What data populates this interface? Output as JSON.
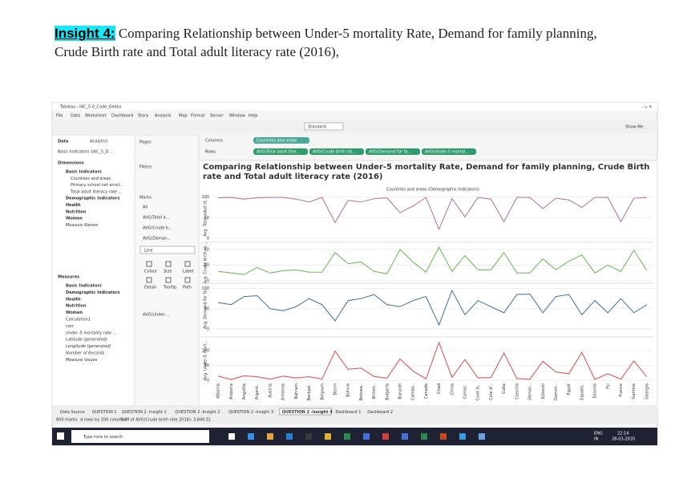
{
  "heading": {
    "label": "Insight 4:",
    "text": "Comparing Relationship between Under-5 mortality Rate, Demand for family planning, Crude Birth rate and Total adult literacy rate (2016),"
  },
  "window": {
    "title": "Tableau - IAC_5.0_Code_Geeks",
    "menu": [
      "File",
      "Data",
      "Worksheet",
      "Dashboard",
      "Story",
      "Analysis",
      "Map",
      "Format",
      "Server",
      "Window",
      "Help"
    ],
    "toolbar_dropdown": "Standard",
    "show_me": "Show Me"
  },
  "data_pane": {
    "tabs": [
      "Data",
      "Analytics"
    ],
    "source": "Basic Indicators (IAC_5_D...",
    "dimensions_header": "Dimensions",
    "dimensions": [
      "Basic Indicators",
      "Countries and areas",
      "Primary school net enrol...",
      "Total adult literacy rate ...",
      "Demographic Indicators",
      "Health",
      "Nutrition",
      "Women",
      "Measure Names"
    ],
    "measures_header": "Measures",
    "measures": [
      "Basic Indicators",
      "Demographic Indicators",
      "Health",
      "Nutrition",
      "Women",
      "Calculation1",
      "corr",
      "Under–5 mortality rate ...",
      "Latitude (generated)",
      "Longitude (generated)",
      "Number of Records",
      "Measure Values"
    ]
  },
  "cards": {
    "pages": "Pages",
    "filters": "Filters",
    "marks": "Marks",
    "marks_items": [
      "All",
      "AVG(Total a...",
      "AVG(Crude b...",
      "AVG(Deman..."
    ],
    "mark_type": "Line",
    "buttons": [
      "Colour",
      "Size",
      "Label",
      "Detail",
      "Tooltip",
      "Path"
    ],
    "last_item": "AVG(Under-..."
  },
  "shelves": {
    "columns_label": "Columns",
    "columns": [
      "Countries and areas"
    ],
    "rows_label": "Rows",
    "rows": [
      "AVG(Total adult liter...",
      "AVG(Crude birth rat...",
      "AVG(Demand for fa...",
      "AVG(Under-5 mortal..."
    ]
  },
  "chart_data": {
    "type": "line",
    "title": "Comparing Relationship between Under-5 mortality Rate, Demand for family planning, Crude Birth rate and Total adult literacy rate (2016)",
    "subtitle": "Countries and areas (Demographic Indicators)",
    "categories": [
      "Albania",
      "Andorra",
      "Anguilla",
      "Argent..",
      "Austria",
      "Armenia",
      "Bahrain",
      "Barbad..",
      "Belgium",
      "Benin",
      "Bolivia",
      "Botswa..",
      "British..",
      "Bulgaria",
      "Burundi",
      "Cambo..",
      "Canada",
      "Chad",
      "China",
      "Comor..",
      "Cook Is..",
      "Cote d'..",
      "Cuba",
      "Czechia",
      "Democ..",
      "Djibouti",
      "Domini..",
      "Egypt",
      "Equato..",
      "Estonia",
      "Fiji",
      "France",
      "Gambia",
      "Georgia"
    ],
    "panes": [
      {
        "ylabel": "Avg. Total adult lit...",
        "color": "#b37ba8",
        "ylim": [
          0,
          105
        ],
        "yticks": [
          0,
          50,
          100
        ],
        "values": [
          98,
          99,
          95,
          98,
          99,
          99,
          95,
          88,
          99,
          38,
          92,
          88,
          96,
          98,
          62,
          78,
          99,
          22,
          96,
          52,
          99,
          95,
          40,
          99,
          99,
          72,
          97,
          93,
          75,
          99,
          99,
          40,
          97,
          99
        ]
      },
      {
        "ylabel": "Avg. Crude birth ra...",
        "color": "#6cbf5b",
        "ylim": [
          0,
          45
        ],
        "yticks": [
          0,
          20,
          40
        ],
        "values": [
          12,
          10,
          8,
          17,
          10,
          13,
          14,
          11,
          11,
          36,
          22,
          24,
          12,
          9,
          40,
          24,
          11,
          43,
          12,
          32,
          14,
          14,
          36,
          10,
          10,
          28,
          14,
          25,
          33,
          10,
          20,
          12,
          39,
          13
        ]
      },
      {
        "ylabel": "Avg. Demand for fa...",
        "color": "#4e79a7",
        "ylim": [
          0,
          105
        ],
        "yticks": [
          0,
          50,
          100
        ],
        "values": [
          65,
          60,
          80,
          82,
          50,
          45,
          55,
          75,
          60,
          20,
          70,
          75,
          85,
          60,
          55,
          70,
          80,
          10,
          95,
          35,
          70,
          55,
          40,
          85,
          86,
          40,
          80,
          85,
          35,
          70,
          40,
          75,
          40,
          60
        ]
      },
      {
        "ylabel": "Avg. Under-5 mort...",
        "color": "#e15759",
        "ylim": [
          0,
          135
        ],
        "yticks": [
          0,
          50,
          100
        ],
        "values": [
          14,
          3,
          15,
          12,
          4,
          14,
          8,
          12,
          4,
          98,
          37,
          41,
          13,
          7,
          72,
          31,
          5,
          127,
          10,
          70,
          8,
          9,
          92,
          6,
          4,
          64,
          28,
          22,
          94,
          3,
          22,
          4,
          65,
          12
        ]
      }
    ]
  },
  "tabs": [
    "Data Source",
    "QUESTION 1",
    "QUESTION 2- Insight 1",
    "QUESTION 2 -Insight 2",
    "QUESTION 2 -Insight 3",
    "QUESTION 2 -Insight 4",
    "Dashboard 1",
    "Dashboard 2"
  ],
  "status": [
    "600 marks",
    "4 rows by 200 columns",
    "SUM of AVG(Crude birth rate 2016): 3,840.51"
  ],
  "taskbar": {
    "search": "Type here to search",
    "lang": "ENG",
    "region": "IN",
    "time": "22:14",
    "date": "28-03-2020"
  }
}
